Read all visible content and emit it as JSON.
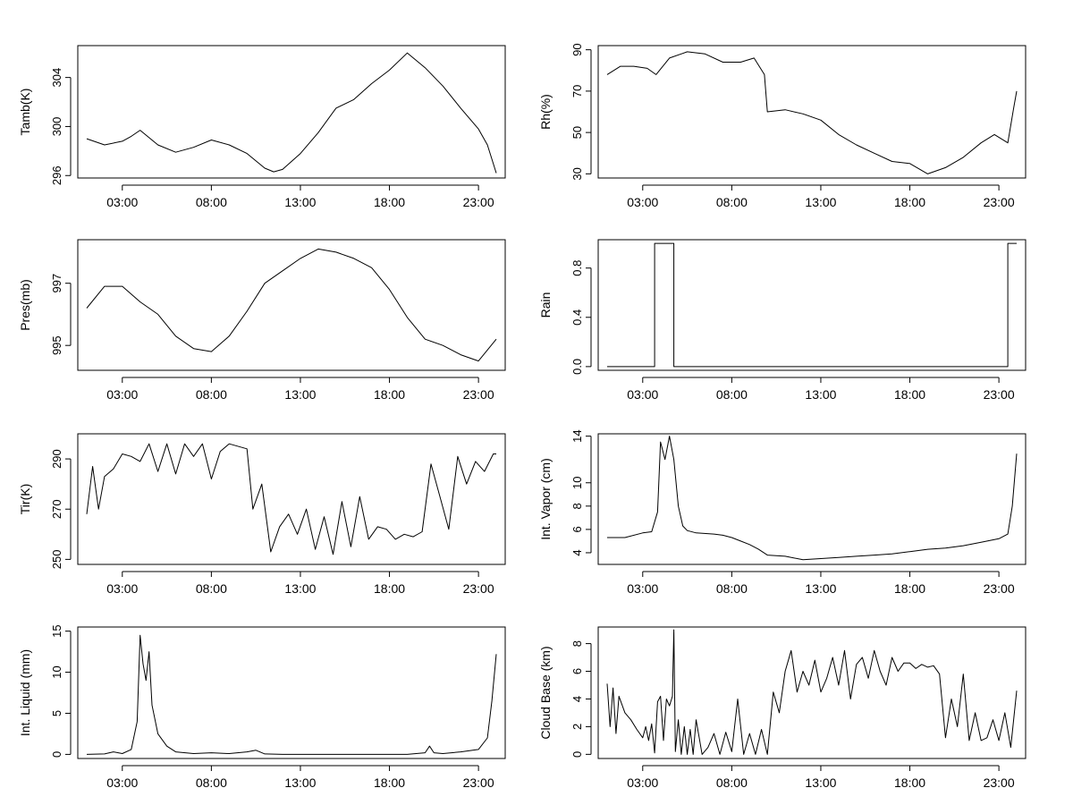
{
  "chart_data": [
    {
      "type": "line",
      "ylabel": "Tamb(K)",
      "ylim": [
        295.8,
        306.6
      ],
      "yticks": [
        "296",
        "300",
        "304"
      ],
      "xticks": [
        "03:00",
        "08:00",
        "13:00",
        "18:00",
        "23:00"
      ],
      "x": [
        "01:00",
        "02:00",
        "03:00",
        "03:30",
        "04:00",
        "05:00",
        "06:00",
        "07:00",
        "08:00",
        "09:00",
        "10:00",
        "11:00",
        "11:30",
        "12:00",
        "13:00",
        "14:00",
        "15:00",
        "16:00",
        "17:00",
        "18:00",
        "19:00",
        "20:00",
        "21:00",
        "22:00",
        "23:00",
        "23:30",
        "24:00"
      ],
      "values": [
        299.0,
        298.5,
        298.8,
        299.2,
        299.7,
        298.5,
        297.9,
        298.3,
        298.9,
        298.5,
        297.8,
        296.6,
        296.3,
        296.5,
        297.8,
        299.5,
        301.5,
        302.2,
        303.5,
        304.6,
        306.0,
        304.8,
        303.3,
        301.5,
        299.8,
        298.5,
        296.2
      ],
      "grid": false
    },
    {
      "type": "line",
      "ylabel": "Rh(%)",
      "ylim": [
        28,
        92
      ],
      "yticks": [
        "30",
        "50",
        "70",
        "90"
      ],
      "xticks": [
        "03:00",
        "08:00",
        "13:00",
        "18:00",
        "23:00"
      ],
      "x": [
        "01:00",
        "01:45",
        "02:30",
        "03:15",
        "03:45",
        "04:30",
        "05:30",
        "06:30",
        "07:30",
        "08:30",
        "09:15",
        "09:50",
        "10:00",
        "11:00",
        "12:00",
        "13:00",
        "14:00",
        "15:00",
        "16:00",
        "17:00",
        "18:00",
        "19:00",
        "20:00",
        "21:00",
        "22:00",
        "22:45",
        "23:30",
        "23:50",
        "24:00"
      ],
      "values": [
        78,
        82,
        82,
        81,
        78,
        86,
        89,
        88,
        84,
        84,
        86,
        78,
        60,
        61,
        59,
        56,
        49,
        44,
        40,
        36,
        35,
        30,
        33,
        38,
        45,
        49,
        45,
        62,
        70
      ],
      "grid": false
    },
    {
      "type": "line",
      "ylabel": "Pres(mb)",
      "ylim": [
        994.2,
        998.4
      ],
      "yticks": [
        "995",
        "997"
      ],
      "xticks": [
        "03:00",
        "08:00",
        "13:00",
        "18:00",
        "23:00"
      ],
      "x": [
        "01:00",
        "02:00",
        "03:00",
        "04:00",
        "05:00",
        "06:00",
        "07:00",
        "08:00",
        "09:00",
        "10:00",
        "11:00",
        "12:00",
        "13:00",
        "14:00",
        "15:00",
        "16:00",
        "17:00",
        "18:00",
        "19:00",
        "20:00",
        "21:00",
        "22:00",
        "23:00",
        "24:00"
      ],
      "values": [
        996.2,
        996.9,
        996.9,
        996.4,
        996.0,
        995.3,
        994.9,
        994.8,
        995.3,
        996.1,
        997.0,
        997.4,
        997.8,
        998.1,
        998.0,
        997.8,
        997.5,
        996.8,
        995.9,
        995.2,
        995.0,
        994.7,
        994.5,
        995.2
      ],
      "grid": false
    },
    {
      "type": "line",
      "ylabel": "Rain",
      "ylim": [
        -0.03,
        1.03
      ],
      "yticks": [
        "0.0",
        "0.4",
        "0.8"
      ],
      "xticks": [
        "03:00",
        "08:00",
        "13:00",
        "18:00",
        "23:00"
      ],
      "x": [
        "01:00",
        "03:40",
        "03:40",
        "04:45",
        "04:45",
        "23:30",
        "23:30",
        "24:00"
      ],
      "values": [
        0,
        0,
        1,
        1,
        0,
        0,
        1,
        1
      ],
      "grid": false
    },
    {
      "type": "line",
      "ylabel": "Tir(K)",
      "ylim": [
        248,
        300
      ],
      "yticks": [
        "250",
        "270",
        "290"
      ],
      "xticks": [
        "03:00",
        "08:00",
        "13:00",
        "18:00",
        "23:00"
      ],
      "x": [
        "01:00",
        "01:20",
        "01:40",
        "02:00",
        "02:30",
        "03:00",
        "03:30",
        "04:00",
        "04:30",
        "05:00",
        "05:30",
        "06:00",
        "06:30",
        "07:00",
        "07:30",
        "08:00",
        "08:30",
        "09:00",
        "10:00",
        "10:20",
        "10:50",
        "11:20",
        "11:50",
        "12:20",
        "12:50",
        "13:20",
        "13:50",
        "14:20",
        "14:50",
        "15:20",
        "15:50",
        "16:20",
        "16:50",
        "17:20",
        "17:50",
        "18:20",
        "18:50",
        "19:20",
        "19:50",
        "20:20",
        "20:50",
        "21:20",
        "21:50",
        "22:20",
        "22:50",
        "23:20",
        "23:50",
        "24:00"
      ],
      "values": [
        268,
        287,
        270,
        283,
        286,
        292,
        291,
        289,
        296,
        285,
        296,
        284,
        296,
        291,
        296,
        282,
        293,
        296,
        294,
        270,
        280,
        253,
        263,
        268,
        260,
        270,
        254,
        267,
        252,
        273,
        255,
        275,
        258,
        263,
        262,
        258,
        260,
        259,
        261,
        288,
        275,
        262,
        291,
        280,
        289,
        285,
        292,
        292
      ],
      "grid": false
    },
    {
      "type": "line",
      "ylabel": "Int. Vapor (cm)",
      "ylim": [
        3.0,
        14.2
      ],
      "yticks": [
        "4",
        "6",
        "8",
        "10",
        "14"
      ],
      "xticks": [
        "03:00",
        "08:00",
        "13:00",
        "18:00",
        "23:00"
      ],
      "x": [
        "01:00",
        "02:00",
        "03:00",
        "03:30",
        "03:50",
        "04:00",
        "04:15",
        "04:30",
        "04:45",
        "05:00",
        "05:15",
        "05:30",
        "06:00",
        "07:00",
        "07:30",
        "08:00",
        "08:30",
        "09:00",
        "09:30",
        "10:00",
        "11:00",
        "12:00",
        "13:00",
        "14:00",
        "15:00",
        "16:00",
        "17:00",
        "18:00",
        "19:00",
        "20:00",
        "21:00",
        "22:00",
        "23:00",
        "23:30",
        "23:45",
        "24:00"
      ],
      "values": [
        5.3,
        5.3,
        5.7,
        5.8,
        7.5,
        13.5,
        12.0,
        14.0,
        12.0,
        8.0,
        6.3,
        5.9,
        5.7,
        5.6,
        5.5,
        5.3,
        5.0,
        4.7,
        4.3,
        3.8,
        3.7,
        3.4,
        3.5,
        3.6,
        3.7,
        3.8,
        3.9,
        4.1,
        4.3,
        4.4,
        4.6,
        4.9,
        5.2,
        5.6,
        8.0,
        12.5
      ],
      "grid": false
    },
    {
      "type": "line",
      "ylabel": "Int. Liquid (mm)",
      "ylim": [
        -0.5,
        15.5
      ],
      "yticks": [
        "0",
        "5",
        "10",
        "15"
      ],
      "xticks": [
        "03:00",
        "08:00",
        "13:00",
        "18:00",
        "23:00"
      ],
      "x": [
        "01:00",
        "02:00",
        "02:30",
        "03:00",
        "03:30",
        "03:50",
        "04:00",
        "04:10",
        "04:20",
        "04:30",
        "04:40",
        "05:00",
        "05:30",
        "06:00",
        "07:00",
        "08:00",
        "09:00",
        "10:00",
        "10:30",
        "11:00",
        "12:00",
        "14:00",
        "16:00",
        "18:00",
        "19:00",
        "20:00",
        "20:15",
        "20:30",
        "21:00",
        "22:00",
        "23:00",
        "23:30",
        "23:45",
        "24:00"
      ],
      "values": [
        0,
        0.05,
        0.3,
        0.1,
        0.6,
        4.0,
        14.5,
        11.0,
        9.0,
        12.5,
        6.0,
        2.5,
        1.0,
        0.3,
        0.1,
        0.2,
        0.1,
        0.3,
        0.5,
        0.05,
        0,
        0,
        0,
        0,
        0,
        0.2,
        1.0,
        0.2,
        0.1,
        0.3,
        0.6,
        2.0,
        6.5,
        12.2
      ],
      "grid": false
    },
    {
      "type": "line",
      "ylabel": "Cloud Base (km)",
      "ylim": [
        -0.3,
        9.2
      ],
      "yticks": [
        "0",
        "2",
        "4",
        "6",
        "8"
      ],
      "xticks": [
        "03:00",
        "08:00",
        "13:00",
        "18:00",
        "23:00"
      ],
      "x": [
        "01:00",
        "01:10",
        "01:20",
        "01:30",
        "01:40",
        "02:00",
        "02:20",
        "02:40",
        "03:00",
        "03:10",
        "03:20",
        "03:30",
        "03:40",
        "03:50",
        "04:00",
        "04:10",
        "04:20",
        "04:30",
        "04:40",
        "04:45",
        "04:50",
        "05:00",
        "05:10",
        "05:20",
        "05:30",
        "05:40",
        "05:50",
        "06:00",
        "06:20",
        "06:40",
        "07:00",
        "07:20",
        "07:40",
        "08:00",
        "08:20",
        "08:40",
        "09:00",
        "09:20",
        "09:40",
        "10:00",
        "10:20",
        "10:40",
        "11:00",
        "11:20",
        "11:40",
        "12:00",
        "12:20",
        "12:40",
        "13:00",
        "13:20",
        "13:40",
        "14:00",
        "14:20",
        "14:40",
        "15:00",
        "15:20",
        "15:40",
        "16:00",
        "16:20",
        "16:40",
        "17:00",
        "17:20",
        "17:40",
        "18:00",
        "18:20",
        "18:40",
        "19:00",
        "19:20",
        "19:40",
        "20:00",
        "20:20",
        "20:40",
        "21:00",
        "21:20",
        "21:40",
        "22:00",
        "22:20",
        "22:40",
        "23:00",
        "23:20",
        "23:40",
        "24:00"
      ],
      "values": [
        5.1,
        2.0,
        4.8,
        1.5,
        4.2,
        3.0,
        2.5,
        1.8,
        1.2,
        2.0,
        1.0,
        2.2,
        0.1,
        3.8,
        4.2,
        1.0,
        4.0,
        3.5,
        4.2,
        9.0,
        0.2,
        2.5,
        0,
        2.0,
        0,
        1.8,
        0,
        2.5,
        0,
        0.5,
        1.5,
        0,
        1.6,
        0.2,
        4.0,
        0,
        1.5,
        0,
        1.8,
        0,
        4.5,
        3.0,
        6.0,
        7.5,
        4.5,
        6.0,
        5.0,
        6.8,
        4.5,
        5.5,
        7.0,
        5.0,
        7.5,
        4.0,
        6.5,
        7.0,
        5.5,
        7.5,
        6.0,
        5.0,
        7.0,
        6.0,
        6.6,
        6.6,
        6.2,
        6.5,
        6.3,
        6.4,
        5.8,
        1.2,
        4.0,
        2.0,
        5.8,
        1.0,
        3.0,
        1.0,
        1.2,
        2.5,
        1.0,
        3.0,
        0.5,
        4.6
      ],
      "grid": false
    }
  ]
}
